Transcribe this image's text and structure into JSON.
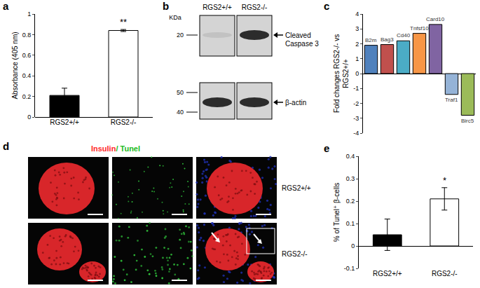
{
  "chart_data": [
    {
      "panel_label": "a",
      "type": "bar",
      "categories": [
        "RGS2+/+",
        "RGS2-/-"
      ],
      "values": [
        0.21,
        0.84
      ],
      "error": [
        0.07,
        0.01
      ],
      "colors": [
        "#000000",
        "#ffffff"
      ],
      "ylabel": "Absorbance (405 nm)",
      "ylim": [
        0,
        1
      ],
      "yticks": [
        0,
        0.2,
        0.4,
        0.6,
        0.8,
        1
      ],
      "grid": false,
      "annotations": [
        {
          "category": "RGS2-/-",
          "text": "**"
        }
      ]
    },
    {
      "panel_label": "c",
      "type": "bar",
      "categories": [
        "B2m",
        "Bag3",
        "Cd40",
        "Tnfsf10",
        "Card10",
        "Traf1",
        "Birc5"
      ],
      "values": [
        1.9,
        1.95,
        2.2,
        2.7,
        3.3,
        -1.4,
        -2.8
      ],
      "colors": [
        "#4f81bd",
        "#c0504d",
        "#4bacc6",
        "#f79646",
        "#8064a2",
        "#95b3d7",
        "#9bbb59"
      ],
      "ylabel": [
        "Fold changes RGS2-/- vs",
        "RGS2+/+"
      ],
      "ylim": [
        -4,
        4
      ],
      "yticks": [
        -4,
        -3,
        -2,
        -1,
        0,
        1,
        2,
        3,
        4
      ],
      "grid": false,
      "tick_labels": "y"
    },
    {
      "panel_label": "e",
      "type": "bar",
      "categories": [
        "RGS2+/+",
        "RGS2-/-"
      ],
      "values": [
        0.05,
        0.21
      ],
      "error": [
        0.07,
        0.05
      ],
      "colors": [
        "#000000",
        "#ffffff"
      ],
      "ylabel": "% of Tunel⁺ β-cells",
      "ylim": [
        -0.1,
        0.4
      ],
      "yticks": [
        -0.1,
        0,
        0.1,
        0.2,
        0.3,
        0.4
      ],
      "grid": false,
      "annotations": [
        {
          "category": "RGS2-/-",
          "text": "*"
        }
      ]
    }
  ],
  "blot": {
    "panel_label": "b",
    "unit": "KDa",
    "lanes": [
      "RGS2+/+",
      "RGS2-/-"
    ],
    "rows": [
      {
        "label": [
          "Cleaved",
          "Caspase 3"
        ],
        "markers": [
          20
        ]
      },
      {
        "label": [
          "β-actin"
        ],
        "markers": [
          50,
          40
        ]
      }
    ]
  },
  "micrographs": {
    "panel_label": "d",
    "title": [
      {
        "text": "Insulin",
        "color": "#ff2a2a"
      },
      {
        "text": "/ Tunel",
        "color": "#22bb22"
      }
    ],
    "rows": [
      "RGS2+/+",
      "RGS2-/-"
    ]
  }
}
